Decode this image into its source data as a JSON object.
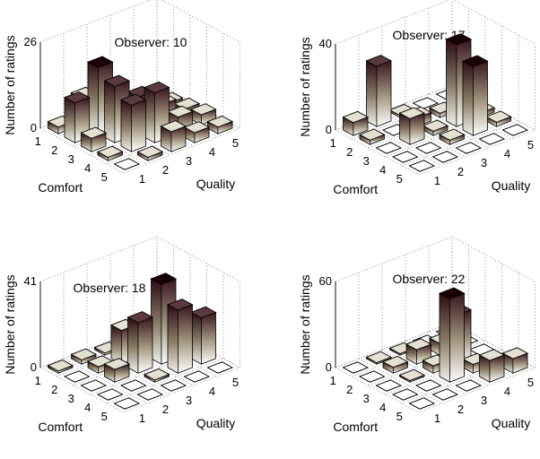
{
  "chart_data": [
    {
      "type": "bar3d",
      "title": "Observer: 10",
      "xlabel": "Comfort",
      "ylabel": "Quality",
      "zlabel": "Number of ratings",
      "x_ticks": [
        "1",
        "2",
        "3",
        "4",
        "5"
      ],
      "y_ticks": [
        "1",
        "2",
        "3",
        "4",
        "5"
      ],
      "z_ticks": [
        "0",
        "26"
      ],
      "zlim": [
        0,
        26
      ],
      "grid": true,
      "values": [
        [
          2,
          8,
          1,
          0,
          0
        ],
        [
          12,
          20,
          3,
          0,
          1
        ],
        [
          4,
          17,
          11,
          6,
          2
        ],
        [
          1,
          14,
          15,
          5,
          3
        ],
        [
          0,
          1,
          6,
          3,
          2
        ]
      ]
    },
    {
      "type": "bar3d",
      "title": "Observer: 17",
      "xlabel": "Comfort",
      "ylabel": "Quality",
      "zlabel": "Number of ratings",
      "x_ticks": [
        "1",
        "2",
        "3",
        "4",
        "5"
      ],
      "y_ticks": [
        "1",
        "2",
        "3",
        "4",
        "5"
      ],
      "z_ticks": [
        "0",
        "40"
      ],
      "zlim": [
        0,
        40
      ],
      "grid": true,
      "values": [
        [
          6,
          28,
          1,
          0,
          0
        ],
        [
          2,
          0,
          4,
          2,
          0
        ],
        [
          0,
          12,
          2,
          38,
          2
        ],
        [
          0,
          0,
          2,
          32,
          2
        ],
        [
          0,
          0,
          0,
          0,
          0
        ]
      ]
    },
    {
      "type": "bar3d",
      "title": "Observer: 18",
      "xlabel": "Comfort",
      "ylabel": "Quality",
      "zlabel": "Number of ratings",
      "x_ticks": [
        "1",
        "2",
        "3",
        "4",
        "5"
      ],
      "y_ticks": [
        "1",
        "2",
        "3",
        "4",
        "5"
      ],
      "z_ticks": [
        "0",
        "41"
      ],
      "zlim": [
        0,
        41
      ],
      "grid": true,
      "values": [
        [
          1,
          2,
          1,
          0,
          0
        ],
        [
          0,
          3,
          16,
          1,
          0
        ],
        [
          0,
          6,
          24,
          38,
          0
        ],
        [
          0,
          0,
          1,
          30,
          22
        ],
        [
          0,
          0,
          0,
          0,
          0
        ]
      ]
    },
    {
      "type": "bar3d",
      "title": "Observer: 22",
      "xlabel": "Comfort",
      "ylabel": "Quality",
      "zlabel": "Number of ratings",
      "x_ticks": [
        "1",
        "2",
        "3",
        "4",
        "5"
      ],
      "y_ticks": [
        "1",
        "2",
        "3",
        "4",
        "5"
      ],
      "z_ticks": [
        "0",
        "60"
      ],
      "zlim": [
        0,
        60
      ],
      "grid": true,
      "values": [
        [
          0,
          1,
          1,
          0,
          0
        ],
        [
          0,
          4,
          10,
          8,
          0
        ],
        [
          0,
          1,
          5,
          34,
          0
        ],
        [
          0,
          0,
          58,
          6,
          0
        ],
        [
          0,
          0,
          0,
          15,
          10
        ]
      ]
    }
  ]
}
